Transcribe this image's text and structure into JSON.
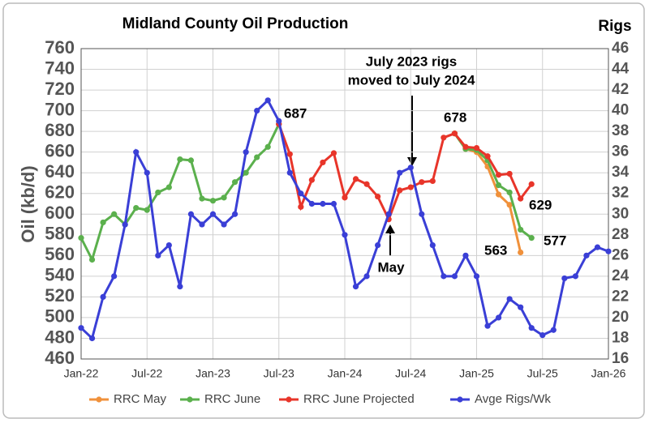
{
  "chart_data": {
    "type": "line",
    "title": "Midland County Oil Production",
    "y_label": "Oil (kb/d)",
    "y2_label": "Rigs",
    "x": [
      0,
      1,
      2,
      3,
      4,
      5,
      6,
      7,
      8,
      9,
      10,
      11,
      12,
      13,
      14,
      15,
      16,
      17,
      18,
      19,
      20,
      21,
      22,
      23,
      24,
      25,
      26,
      27,
      28,
      29,
      30,
      31,
      32,
      33,
      34,
      35,
      36,
      37,
      38,
      39,
      40,
      41,
      42,
      43,
      44,
      45,
      46,
      47,
      48
    ],
    "xlim": [
      0,
      48
    ],
    "xticks": [
      {
        "value": 0,
        "label": "Jan-22"
      },
      {
        "value": 6,
        "label": "Jul-22"
      },
      {
        "value": 12,
        "label": "Jan-23"
      },
      {
        "value": 18,
        "label": "Jul-23"
      },
      {
        "value": 24,
        "label": "Jan-24"
      },
      {
        "value": 30,
        "label": "Jul-24"
      },
      {
        "value": 36,
        "label": "Jan-25"
      },
      {
        "value": 42,
        "label": "Jul-25"
      },
      {
        "value": 48,
        "label": "Jan-26"
      }
    ],
    "ylim": [
      460,
      760
    ],
    "yticks": [
      460,
      480,
      500,
      520,
      540,
      560,
      580,
      600,
      620,
      640,
      660,
      680,
      700,
      720,
      740,
      760
    ],
    "y2lim": [
      16,
      46
    ],
    "y2ticks": [
      16,
      18,
      20,
      22,
      24,
      26,
      28,
      30,
      32,
      34,
      36,
      38,
      40,
      42,
      44,
      46
    ],
    "grid": true,
    "legend": "bottom",
    "series": [
      {
        "name": "RRC May",
        "color": "#f0913b",
        "values": [
          null,
          null,
          null,
          null,
          null,
          null,
          null,
          null,
          null,
          null,
          null,
          null,
          null,
          null,
          null,
          null,
          null,
          null,
          null,
          null,
          null,
          null,
          null,
          null,
          null,
          null,
          null,
          null,
          null,
          null,
          null,
          null,
          null,
          null,
          678,
          663,
          660,
          646,
          619,
          609,
          563,
          null,
          null,
          null,
          null,
          null,
          null,
          null,
          null
        ]
      },
      {
        "name": "RRC June",
        "color": "#5bb04d",
        "values": [
          577,
          556,
          592,
          600,
          590,
          606,
          604,
          621,
          626,
          653,
          652,
          615,
          613,
          616,
          631,
          640,
          655,
          665,
          687,
          null,
          null,
          null,
          null,
          null,
          null,
          null,
          null,
          null,
          null,
          null,
          null,
          null,
          null,
          null,
          678,
          663,
          662,
          652,
          628,
          621,
          585,
          577,
          null,
          null,
          null,
          null,
          null,
          null,
          null
        ]
      },
      {
        "name": "RRC June Projected",
        "color": "#e8352a",
        "values": [
          null,
          null,
          null,
          null,
          null,
          null,
          null,
          null,
          null,
          null,
          null,
          null,
          null,
          null,
          null,
          null,
          null,
          null,
          687,
          658,
          607,
          633,
          650,
          659,
          616,
          634,
          629,
          617,
          595,
          623,
          626,
          631,
          632,
          674,
          678,
          665,
          664,
          656,
          638,
          639,
          615,
          629,
          null,
          null,
          null,
          null,
          null,
          null,
          null
        ]
      },
      {
        "name": "Avge Rigs/Wk",
        "color": "#3a3fd6",
        "axis": "y2",
        "values": [
          19,
          18,
          22,
          24,
          29,
          36,
          34,
          26,
          27,
          23,
          30,
          29,
          30,
          29,
          30,
          36,
          40,
          41,
          39,
          34,
          32,
          31,
          31,
          31,
          28,
          23,
          24,
          27,
          30,
          34,
          34.5,
          30,
          27,
          24,
          24,
          26,
          24,
          19.2,
          20,
          21.8,
          21,
          19,
          18.3,
          18.8,
          23.8,
          24,
          26,
          26.8,
          26.4
        ]
      }
    ],
    "annotations": [
      "687",
      "678",
      "629",
      "577",
      "563",
      "May",
      "July 2023 rigs",
      "moved to July 2024"
    ]
  }
}
